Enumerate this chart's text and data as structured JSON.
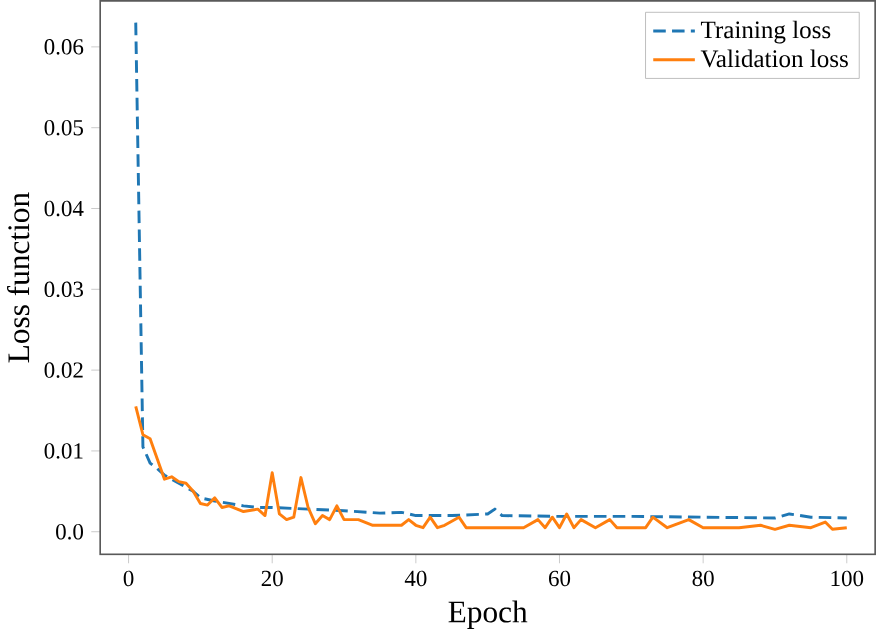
{
  "chart_data": {
    "type": "line",
    "xlabel": "Epoch",
    "ylabel": "Loss function",
    "xlim": [
      -3.95,
      103.95
    ],
    "ylim": [
      -0.0028,
      0.0657
    ],
    "xticks": [
      0,
      20,
      40,
      60,
      80,
      100
    ],
    "yticks": [
      {
        "value": 0,
        "label": "0.0"
      },
      0.01,
      0.02,
      0.03,
      0.04,
      0.05,
      0.06
    ],
    "legend": "top right",
    "grid": false,
    "series": [
      {
        "name": "Training loss",
        "color": "#1f77b4",
        "line_style": "dashed",
        "x": [
          1,
          2,
          3,
          4,
          5,
          6,
          7,
          8,
          9,
          10,
          12,
          14,
          16,
          18,
          20,
          25,
          30,
          35,
          38,
          40,
          45,
          50,
          51,
          52,
          60,
          70,
          80,
          90,
          92,
          95,
          100
        ],
        "values": [
          0.063,
          0.0105,
          0.0085,
          0.0078,
          0.007,
          0.0065,
          0.006,
          0.0055,
          0.005,
          0.0042,
          0.0038,
          0.0035,
          0.0032,
          0.003,
          0.003,
          0.0028,
          0.0026,
          0.0023,
          0.0024,
          0.002,
          0.002,
          0.0022,
          0.0028,
          0.002,
          0.0019,
          0.0019,
          0.0018,
          0.0017,
          0.0022,
          0.0018,
          0.0017
        ]
      },
      {
        "name": "Validation loss",
        "color": "#ff7f0e",
        "line_style": "solid",
        "x": [
          1,
          2,
          3,
          4,
          5,
          6,
          7,
          8,
          9,
          10,
          11,
          12,
          13,
          14,
          16,
          18,
          19,
          20,
          21,
          22,
          23,
          24,
          25,
          26,
          27,
          28,
          29,
          30,
          32,
          34,
          36,
          38,
          39,
          40,
          41,
          42,
          43,
          44,
          46,
          47,
          50,
          55,
          57,
          58,
          59,
          60,
          61,
          62,
          63,
          65,
          67,
          68,
          72,
          73,
          75,
          78,
          80,
          85,
          88,
          90,
          92,
          95,
          97,
          98,
          100
        ],
        "values": [
          0.0155,
          0.012,
          0.0115,
          0.009,
          0.0065,
          0.0068,
          0.0062,
          0.006,
          0.005,
          0.0035,
          0.0033,
          0.0042,
          0.003,
          0.0032,
          0.0025,
          0.0028,
          0.002,
          0.0073,
          0.0022,
          0.0015,
          0.0018,
          0.0067,
          0.003,
          0.001,
          0.002,
          0.0015,
          0.0032,
          0.0015,
          0.0015,
          0.0008,
          0.0008,
          0.0008,
          0.0015,
          0.0008,
          0.0005,
          0.0018,
          0.0005,
          0.0008,
          0.0018,
          0.0005,
          0.0005,
          0.0005,
          0.0015,
          0.0005,
          0.0018,
          0.0005,
          0.0022,
          0.0005,
          0.0015,
          0.0005,
          0.0015,
          0.0005,
          0.0005,
          0.0018,
          0.0005,
          0.0015,
          0.0005,
          0.0005,
          0.0008,
          0.0003,
          0.0008,
          0.0005,
          0.0012,
          0.0003,
          0.0005
        ]
      }
    ]
  }
}
